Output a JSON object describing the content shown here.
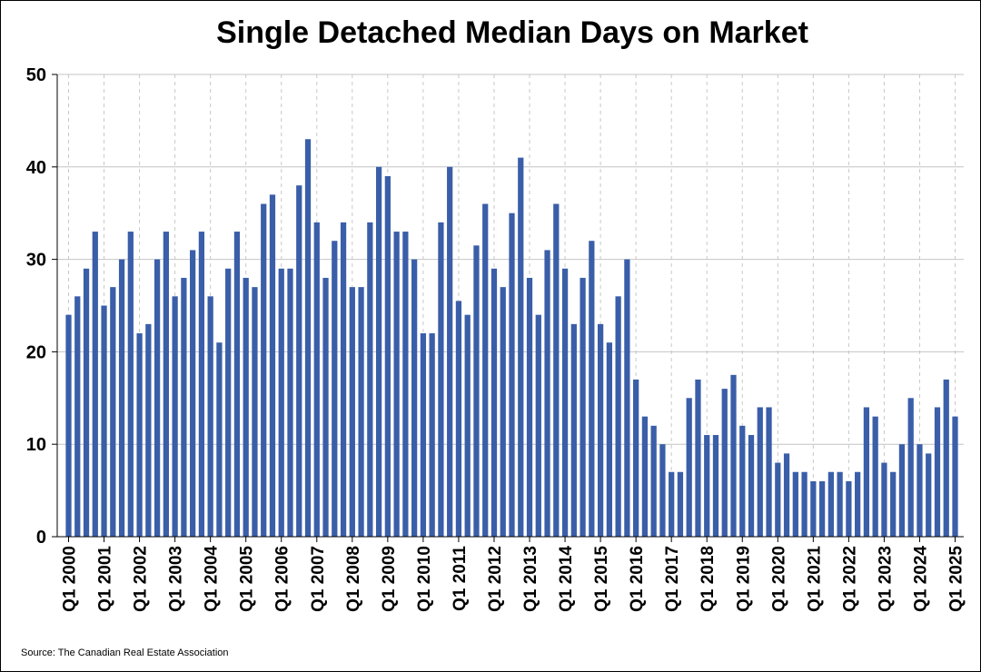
{
  "chart_data": {
    "type": "bar",
    "title": "Single Detached Median Days on Market",
    "xlabel": "",
    "ylabel": "",
    "ylim": [
      0,
      50
    ],
    "yticks": [
      0,
      10,
      20,
      30,
      40,
      50
    ],
    "xtick_labels": [
      "Q1 2000",
      "Q1 2001",
      "Q1 2002",
      "Q1 2003",
      "Q1 2004",
      "Q1 2005",
      "Q1 2006",
      "Q1 2007",
      "Q1 2008",
      "Q1 2009",
      "Q1 2010",
      "Q1 2011",
      "Q1 2012",
      "Q1 2013",
      "Q1 2014",
      "Q1 2015",
      "Q1 2016",
      "Q1 2017",
      "Q1 2018",
      "Q1 2019",
      "Q1 2020",
      "Q1 2021",
      "Q1 2022",
      "Q1 2023",
      "Q1 2024",
      "Q1 2025"
    ],
    "grid": {
      "horizontal": true,
      "vertical_dashed": true
    },
    "bar_color": "#3a5ea8",
    "values": [
      24,
      26,
      29,
      33,
      25,
      27,
      30,
      33,
      22,
      23,
      30,
      33,
      26,
      28,
      31,
      33,
      26,
      21,
      29,
      33,
      28,
      27,
      36,
      37,
      29,
      29,
      38,
      43,
      34,
      28,
      32,
      34,
      27,
      27,
      34,
      40,
      39,
      33,
      33,
      30,
      22,
      22,
      34,
      40,
      25.5,
      24,
      31.5,
      36,
      29,
      27,
      35,
      41,
      28,
      24,
      31,
      36,
      29,
      23,
      28,
      32,
      23,
      21,
      26,
      30,
      17,
      13,
      12,
      10,
      7,
      7,
      15,
      17,
      11,
      11,
      16,
      17.5,
      12,
      11,
      14,
      14,
      8,
      9,
      7,
      7,
      6,
      6,
      7,
      7,
      6,
      7,
      14,
      13,
      8,
      7,
      10,
      15,
      10,
      9,
      14,
      17,
      13
    ]
  },
  "source": "Source: The Canadian Real Estate Association"
}
